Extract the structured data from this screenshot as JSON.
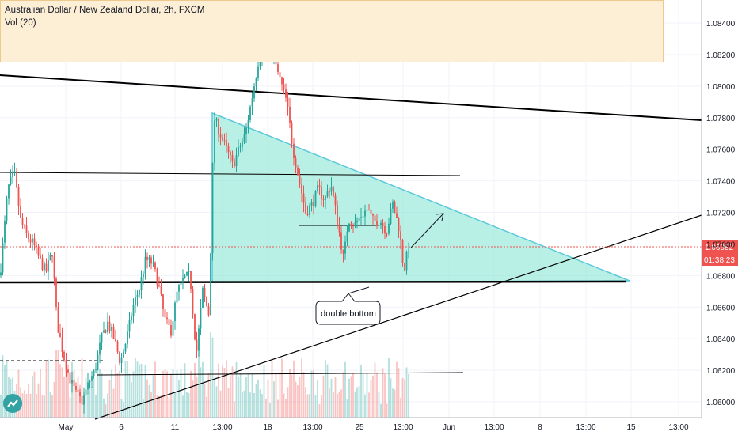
{
  "header": {
    "title": "Australian Dollar / New Zealand Dollar, 2h, FXCM",
    "volume_label": "Vol (20)"
  },
  "annotation_text": "double bottom",
  "price_tag": {
    "value": "1.06982",
    "countdown": "01:38:23"
  },
  "colors": {
    "up": "#26a69a",
    "down": "#ef5350",
    "triangle_fill": "#7fe3d0",
    "triangle_edge": "#5bc8dc",
    "header_bg": "#fdeed6",
    "price_tag": "#ef5350"
  },
  "chart_data": {
    "type": "candlestick",
    "title": "Australian Dollar / New Zealand Dollar, 2h, FXCM",
    "y_ticks": [
      "1.08400",
      "1.08200",
      "1.08000",
      "1.07800",
      "1.07600",
      "1.07400",
      "1.07200",
      "1.07000",
      "1.06800",
      "1.06600",
      "1.06400",
      "1.06200",
      "1.06000"
    ],
    "x_ticks": [
      "May",
      "6",
      "11",
      "13:00",
      "18",
      "13:00",
      "25",
      "13:00",
      "Jun",
      "13:00",
      "8",
      "13:00",
      "15",
      "13:00"
    ],
    "ylim": [
      1.0594,
      1.0854
    ],
    "last_price": 1.06982,
    "pattern_annotation": "double bottom"
  }
}
